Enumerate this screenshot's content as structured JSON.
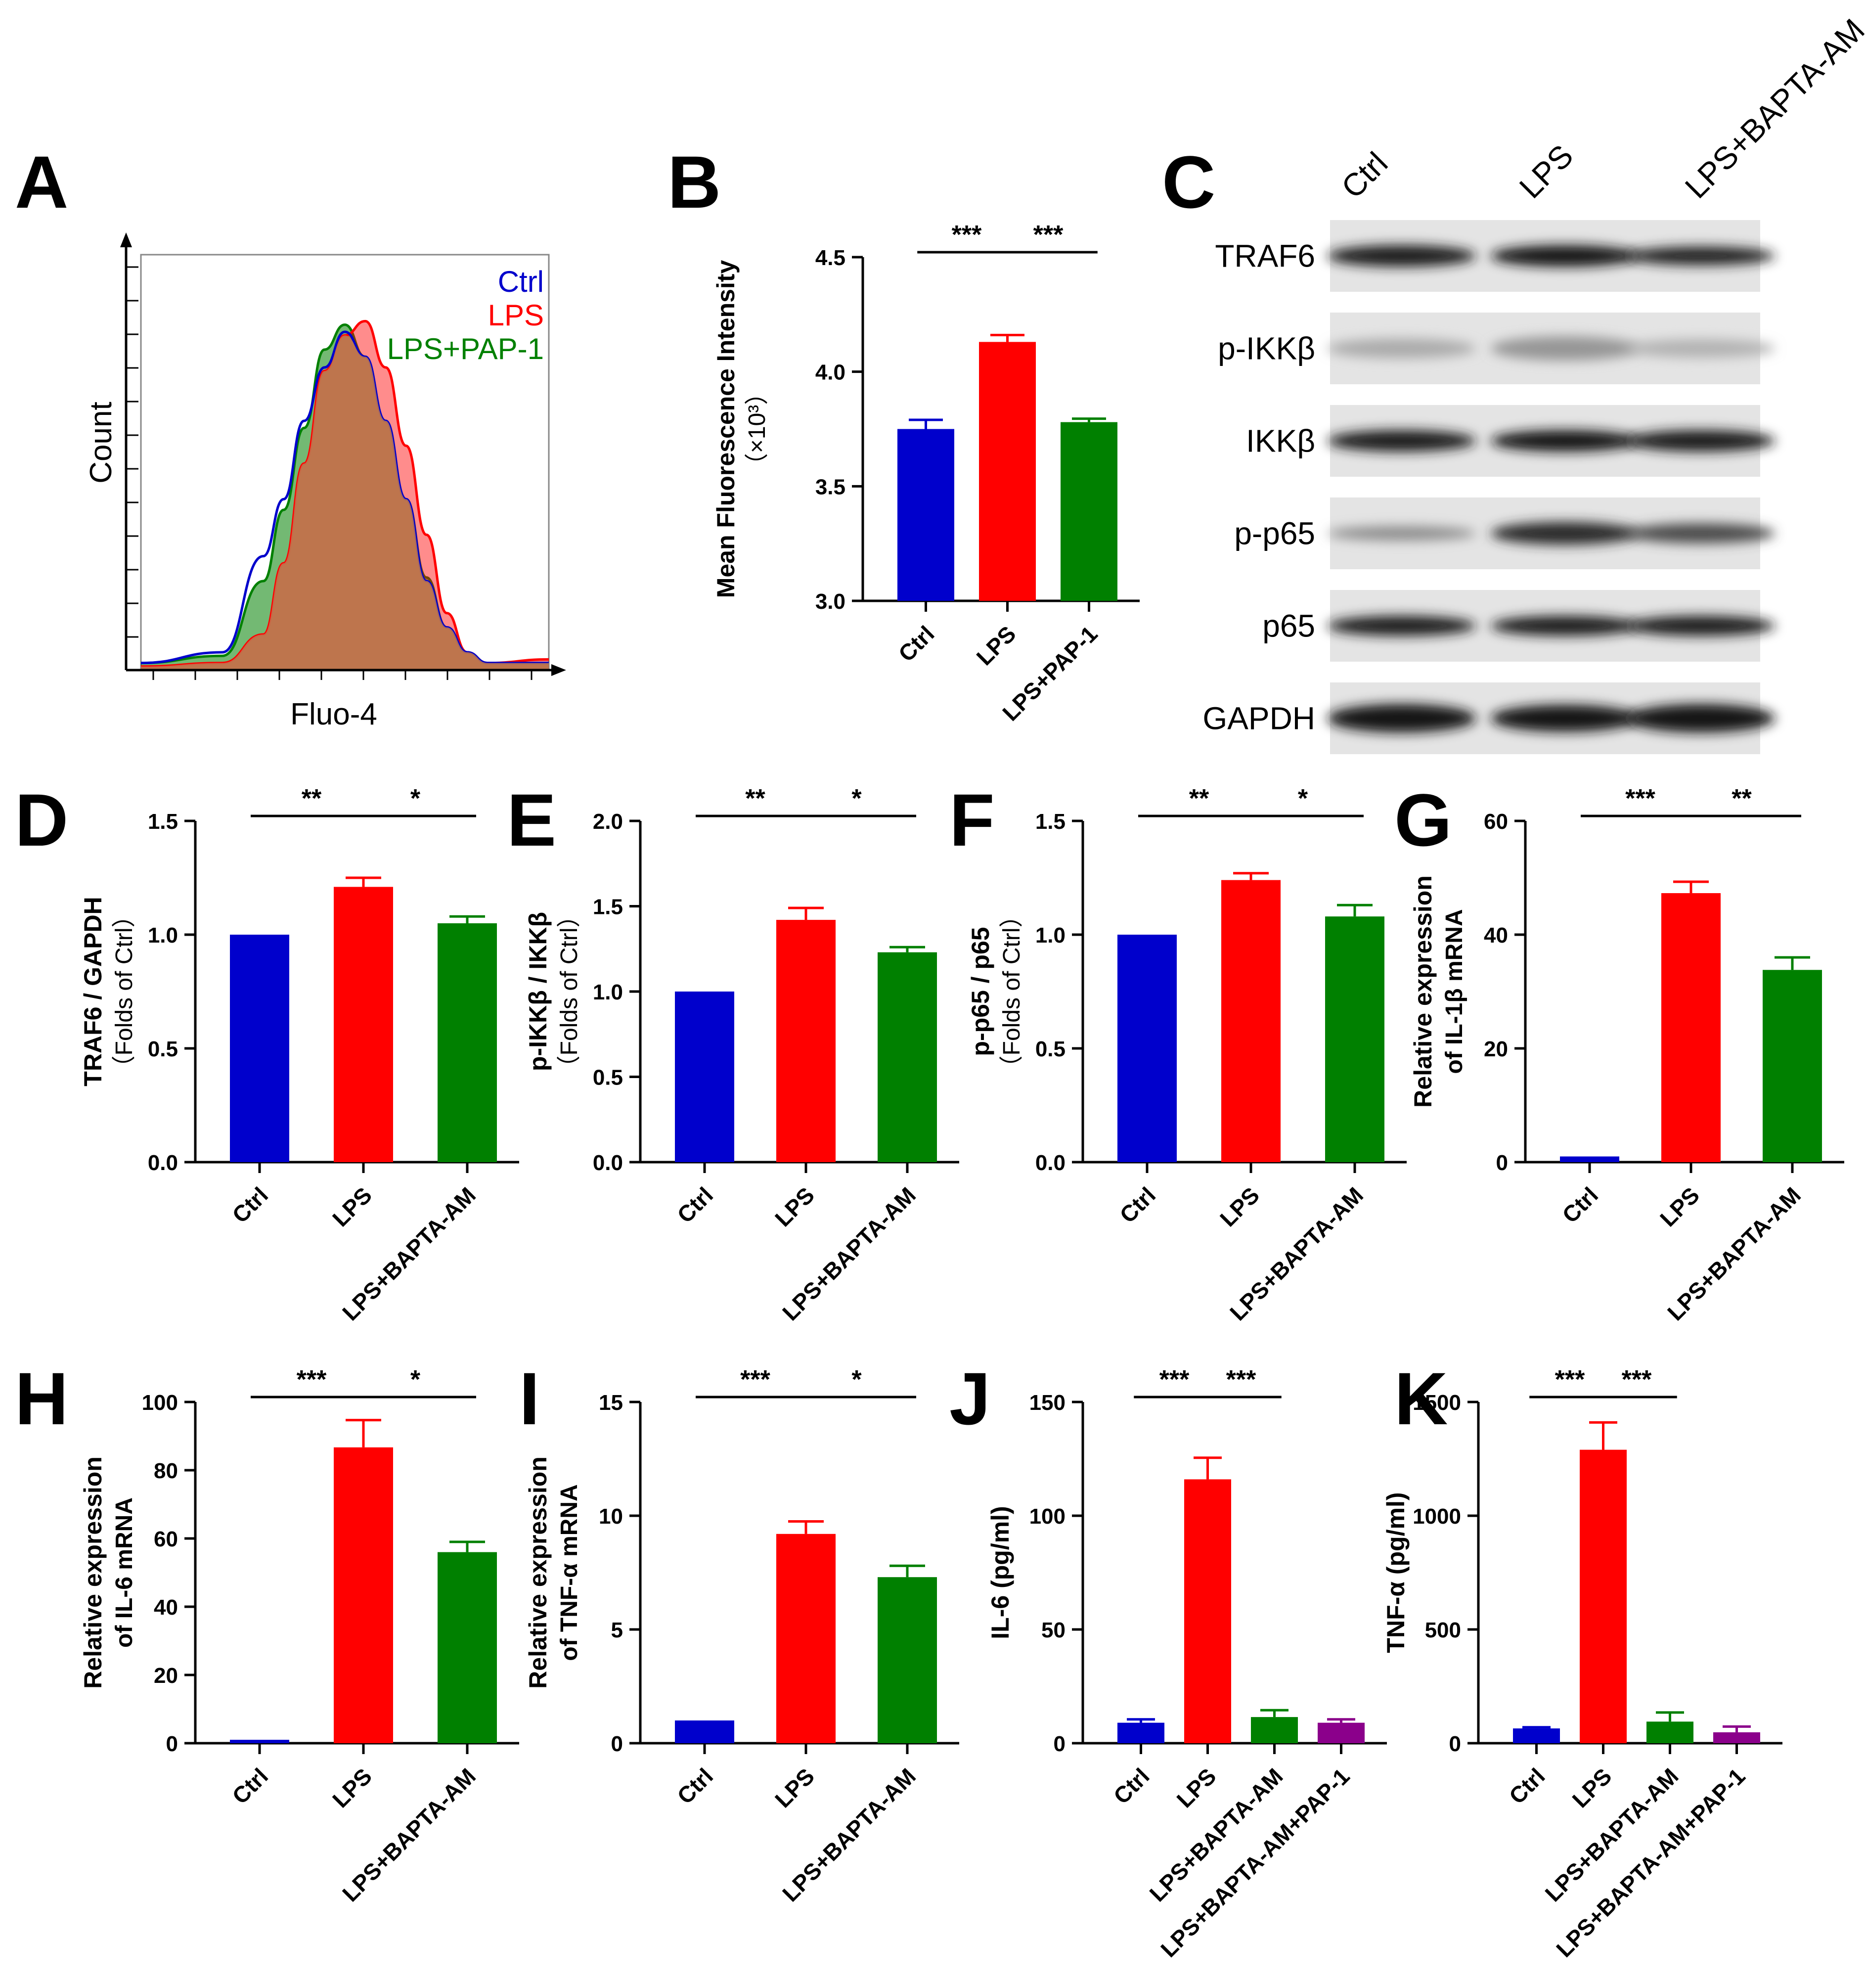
{
  "colors": {
    "ctrl": "#0000CC",
    "lps": "#FF0000",
    "bapta": "#008000",
    "pap": "#8B008B",
    "overlap": "#C07850",
    "axis": "#000000"
  },
  "panel_letters": [
    "A",
    "B",
    "C",
    "D",
    "E",
    "F",
    "G",
    "H",
    "I",
    "J",
    "K"
  ],
  "chart_data": [
    {
      "id": "A",
      "type": "area",
      "xlabel": "Fluo-4",
      "ylabel": "Count",
      "legend": [
        "Ctrl",
        "LPS",
        "LPS+PAP-1"
      ],
      "legend_position": "top-right",
      "x": [
        0,
        0.2,
        0.3,
        0.35,
        0.4,
        0.45,
        0.5,
        0.55,
        0.6,
        0.65,
        0.7,
        0.75,
        0.8,
        0.85,
        1
      ],
      "series": [
        {
          "name": "Ctrl",
          "values": [
            0.02,
            0.05,
            0.32,
            0.48,
            0.7,
            0.85,
            0.95,
            0.88,
            0.7,
            0.48,
            0.25,
            0.12,
            0.05,
            0.02,
            0.02
          ]
        },
        {
          "name": "LPS",
          "values": [
            0.01,
            0.02,
            0.1,
            0.3,
            0.58,
            0.84,
            0.94,
            0.98,
            0.85,
            0.63,
            0.38,
            0.16,
            0.05,
            0.02,
            0.03
          ]
        },
        {
          "name": "LPS+PAP-1",
          "values": [
            0.02,
            0.04,
            0.25,
            0.45,
            0.68,
            0.9,
            0.97,
            0.88,
            0.7,
            0.48,
            0.26,
            0.12,
            0.05,
            0.02,
            0.02
          ]
        }
      ]
    },
    {
      "id": "B",
      "type": "bar",
      "categories": [
        "Ctrl",
        "LPS",
        "LPS+PAP-1"
      ],
      "values": [
        3.75,
        4.13,
        3.78
      ],
      "errors": [
        0.04,
        0.03,
        0.015
      ],
      "ylabel": "Mean Fluorescence Intensity",
      "ylabel2": "（×10³）",
      "ylim": [
        3.0,
        4.5
      ],
      "yticks": [
        "3.0",
        "3.5",
        "4.0",
        "4.5"
      ],
      "significance": [
        {
          "from": 0,
          "to": 1,
          "label": "***"
        },
        {
          "from": 1,
          "to": 2,
          "label": "***"
        }
      ]
    },
    {
      "id": "D",
      "type": "bar",
      "categories": [
        "Ctrl",
        "LPS",
        "LPS+BAPTA-AM"
      ],
      "values": [
        1.0,
        1.21,
        1.05
      ],
      "errors": [
        0,
        0.04,
        0.03
      ],
      "ylabel": "TRAF6 / GAPDH",
      "ylabel2": "（Folds of Ctrl）",
      "ylim": [
        0,
        1.5
      ],
      "yticks": [
        "0.0",
        "0.5",
        "1.0",
        "1.5"
      ],
      "significance": [
        {
          "from": 0,
          "to": 1,
          "label": "**"
        },
        {
          "from": 1,
          "to": 2,
          "label": "*"
        }
      ]
    },
    {
      "id": "E",
      "type": "bar",
      "categories": [
        "Ctrl",
        "LPS",
        "LPS+BAPTA-AM"
      ],
      "values": [
        1.0,
        1.42,
        1.23
      ],
      "errors": [
        0,
        0.07,
        0.03
      ],
      "ylabel": "p-IKKβ / IKKβ",
      "ylabel2": "（Folds of Ctrl）",
      "ylim": [
        0,
        2.0
      ],
      "yticks": [
        "0.0",
        "0.5",
        "1.0",
        "1.5",
        "2.0"
      ],
      "significance": [
        {
          "from": 0,
          "to": 1,
          "label": "**"
        },
        {
          "from": 1,
          "to": 2,
          "label": "*"
        }
      ]
    },
    {
      "id": "F",
      "type": "bar",
      "categories": [
        "Ctrl",
        "LPS",
        "LPS+BAPTA-AM"
      ],
      "values": [
        1.0,
        1.24,
        1.08
      ],
      "errors": [
        0,
        0.03,
        0.05
      ],
      "ylabel": "p-p65 / p65",
      "ylabel2": "（Folds of Ctrl）",
      "ylim": [
        0,
        1.5
      ],
      "yticks": [
        "0.0",
        "0.5",
        "1.0",
        "1.5"
      ],
      "significance": [
        {
          "from": 0,
          "to": 1,
          "label": "**"
        },
        {
          "from": 1,
          "to": 2,
          "label": "*"
        }
      ]
    },
    {
      "id": "G",
      "type": "bar",
      "categories": [
        "Ctrl",
        "LPS",
        "LPS+BAPTA-AM"
      ],
      "values": [
        1.0,
        47.3,
        33.8
      ],
      "errors": [
        0,
        2.0,
        2.2
      ],
      "ylabel": "Relative expression",
      "ylabel2": "of IL-1β mRNA",
      "ylim": [
        0,
        60
      ],
      "yticks": [
        "0",
        "20",
        "40",
        "60"
      ],
      "significance": [
        {
          "from": 0,
          "to": 1,
          "label": "***"
        },
        {
          "from": 1,
          "to": 2,
          "label": "**"
        }
      ]
    },
    {
      "id": "H",
      "type": "bar",
      "categories": [
        "Ctrl",
        "LPS",
        "LPS+BAPTA-AM"
      ],
      "values": [
        1.0,
        86.7,
        56.0
      ],
      "errors": [
        0,
        8.0,
        3.0
      ],
      "ylabel": "Relative expression",
      "ylabel2": "of IL-6 mRNA",
      "ylim": [
        0,
        100
      ],
      "yticks": [
        "0",
        "20",
        "40",
        "60",
        "80",
        "100"
      ],
      "significance": [
        {
          "from": 0,
          "to": 1,
          "label": "***"
        },
        {
          "from": 1,
          "to": 2,
          "label": "*"
        }
      ]
    },
    {
      "id": "I",
      "type": "bar",
      "categories": [
        "Ctrl",
        "LPS",
        "LPS+BAPTA-AM"
      ],
      "values": [
        1.0,
        9.2,
        7.3
      ],
      "errors": [
        0,
        0.55,
        0.5
      ],
      "ylabel": "Relative expression",
      "ylabel2": "of TNF-α mRNA",
      "ylim": [
        0,
        15
      ],
      "yticks": [
        "0",
        "5",
        "10",
        "15"
      ],
      "significance": [
        {
          "from": 0,
          "to": 1,
          "label": "***"
        },
        {
          "from": 1,
          "to": 2,
          "label": "*"
        }
      ]
    },
    {
      "id": "J",
      "type": "bar",
      "categories": [
        "Ctrl",
        "LPS",
        "LPS+BAPTA-AM",
        "LPS+BAPTA-AM+PAP-1"
      ],
      "values": [
        9,
        116,
        11.5,
        9
      ],
      "errors": [
        1.5,
        9.5,
        3.0,
        1.5
      ],
      "ylabel": "IL-6 (pg/ml)",
      "ylabel2": "",
      "ylim": [
        0,
        150
      ],
      "yticks": [
        "0",
        "50",
        "100",
        "150"
      ],
      "significance": [
        {
          "from": 0,
          "to": 1,
          "label": "***"
        },
        {
          "from": 1,
          "to": 2,
          "label": "***"
        }
      ]
    },
    {
      "id": "K",
      "type": "bar",
      "categories": [
        "Ctrl",
        "LPS",
        "LPS+BAPTA-AM",
        "LPS+BAPTA-AM+PAP-1"
      ],
      "values": [
        65,
        1290,
        95,
        48
      ],
      "errors": [
        5,
        120,
        40,
        25
      ],
      "ylabel": "TNF-α (pg/ml)",
      "ylabel2": "",
      "ylim": [
        0,
        1500
      ],
      "yticks": [
        "0",
        "500",
        "1000",
        "1500"
      ],
      "significance": [
        {
          "from": 0,
          "to": 1,
          "label": "***"
        },
        {
          "from": 1,
          "to": 2,
          "label": "***"
        }
      ]
    }
  ],
  "blot": {
    "columns": [
      "Ctrl",
      "LPS",
      "LPS+BAPTA-AM"
    ],
    "rows": [
      {
        "label": "TRAF6",
        "intensity": [
          0.92,
          0.95,
          0.88
        ],
        "thickness": [
          0.3,
          0.3,
          0.26
        ]
      },
      {
        "label": "p-IKKβ",
        "intensity": [
          0.25,
          0.35,
          0.22
        ],
        "thickness": [
          0.28,
          0.34,
          0.26
        ]
      },
      {
        "label": "IKKβ",
        "intensity": [
          0.92,
          0.93,
          0.92
        ],
        "thickness": [
          0.3,
          0.3,
          0.3
        ]
      },
      {
        "label": "p-p65",
        "intensity": [
          0.4,
          0.85,
          0.7
        ],
        "thickness": [
          0.2,
          0.32,
          0.28
        ]
      },
      {
        "label": "p65",
        "intensity": [
          0.92,
          0.92,
          0.92
        ],
        "thickness": [
          0.28,
          0.28,
          0.28
        ]
      },
      {
        "label": "GAPDH",
        "intensity": [
          0.95,
          0.95,
          0.95
        ],
        "thickness": [
          0.4,
          0.38,
          0.4
        ]
      }
    ]
  }
}
